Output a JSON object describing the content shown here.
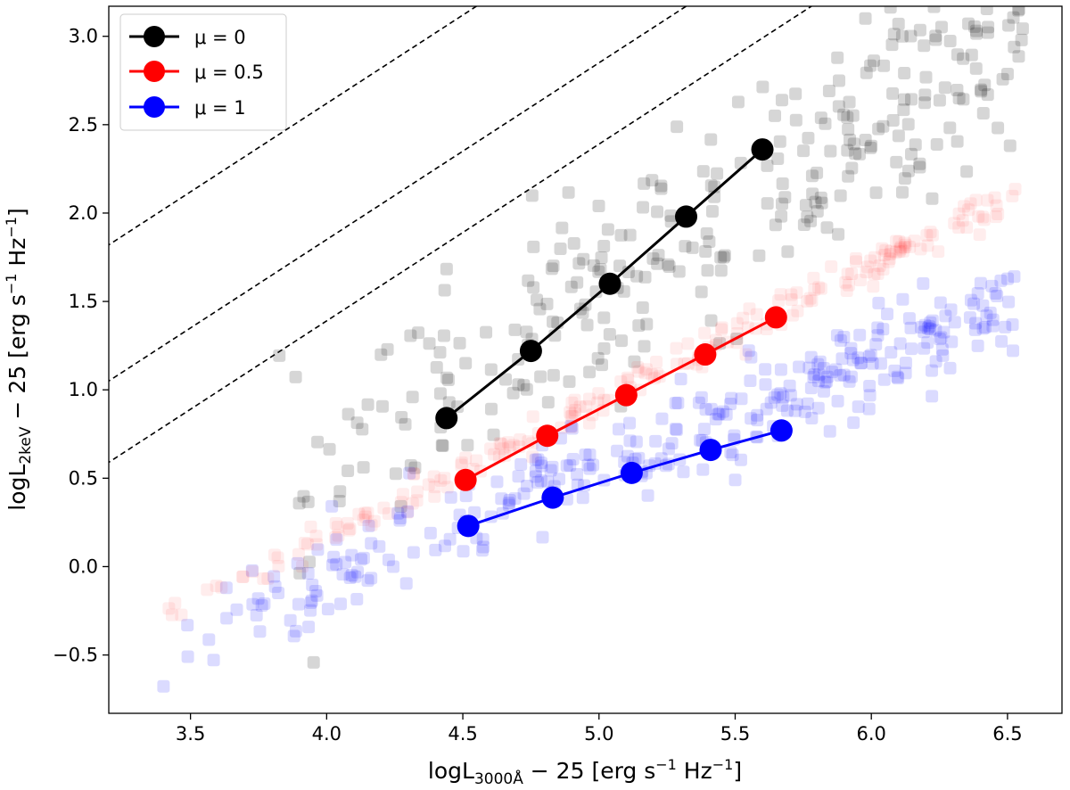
{
  "chart_data": {
    "type": "scatter",
    "xlabel": {
      "main": "logL",
      "sub": "3000Å",
      "rest": " − 25 [erg s",
      "sup1": "−1",
      "mid": " Hz",
      "sup2": "−1",
      "end": "]"
    },
    "ylabel": {
      "main": "logL",
      "sub": "2keV",
      "rest": " − 25 [erg s",
      "sup1": "−1",
      "mid": " Hz",
      "sup2": "−1",
      "end": "]"
    },
    "xlim": [
      3.2,
      6.7
    ],
    "ylim": [
      -0.83,
      3.17
    ],
    "xticks": [
      {
        "value": 3.5,
        "label": "3.5"
      },
      {
        "value": 4.0,
        "label": "4.0"
      },
      {
        "value": 4.5,
        "label": "4.5"
      },
      {
        "value": 5.0,
        "label": "5.0"
      },
      {
        "value": 5.5,
        "label": "5.5"
      },
      {
        "value": 6.0,
        "label": "6.0"
      },
      {
        "value": 6.5,
        "label": "6.5"
      }
    ],
    "yticks": [
      {
        "value": -0.5,
        "label": "−0.5"
      },
      {
        "value": 0.0,
        "label": "0.0"
      },
      {
        "value": 0.5,
        "label": "0.5"
      },
      {
        "value": 1.0,
        "label": "1.0"
      },
      {
        "value": 1.5,
        "label": "1.5"
      },
      {
        "value": 2.0,
        "label": "2.0"
      },
      {
        "value": 2.5,
        "label": "2.5"
      },
      {
        "value": 3.0,
        "label": "3.0"
      }
    ],
    "reference_lines": [
      {
        "slope": 1.0,
        "intercept": -1.38
      },
      {
        "slope": 1.0,
        "intercept": -2.15
      },
      {
        "slope": 1.0,
        "intercept": -2.61
      }
    ],
    "series": [
      {
        "name": "μ = 0",
        "color": "#000000",
        "x": [
          4.44,
          4.75,
          5.04,
          5.32,
          5.6
        ],
        "y": [
          0.84,
          1.22,
          1.6,
          1.98,
          2.36
        ]
      },
      {
        "name": "μ = 0.5",
        "color": "#ff0000",
        "x": [
          4.51,
          4.81,
          5.1,
          5.39,
          5.65
        ],
        "y": [
          0.49,
          0.74,
          0.97,
          1.2,
          1.41
        ]
      },
      {
        "name": "μ = 1",
        "color": "#0000ff",
        "x": [
          4.52,
          4.83,
          5.12,
          5.41,
          5.67
        ],
        "y": [
          0.23,
          0.39,
          0.53,
          0.66,
          0.77
        ]
      }
    ],
    "background_points": [
      {
        "name": "μ = 0 sample",
        "color": "#000000",
        "opacity": 0.16,
        "n": 300,
        "x_range": [
          3.3,
          6.56
        ],
        "slope": 1.0,
        "intercept": -3.45,
        "scatter": 0.3
      },
      {
        "name": "μ = 0.5 sample",
        "color": "#ff0000",
        "opacity": 0.07,
        "n": 220,
        "x_range": [
          3.33,
          6.53
        ],
        "slope": 0.77,
        "intercept": -2.92,
        "scatter": 0.05
      },
      {
        "name": "μ = 1 sample",
        "color": "#0000ff",
        "opacity": 0.14,
        "n": 320,
        "x_range": [
          3.33,
          6.53
        ],
        "slope": 0.62,
        "intercept": -2.55,
        "scatter": 0.13
      }
    ],
    "legend": {
      "position": "top-left",
      "entries": [
        "μ = 0",
        "μ = 0.5",
        "μ = 1"
      ]
    }
  }
}
